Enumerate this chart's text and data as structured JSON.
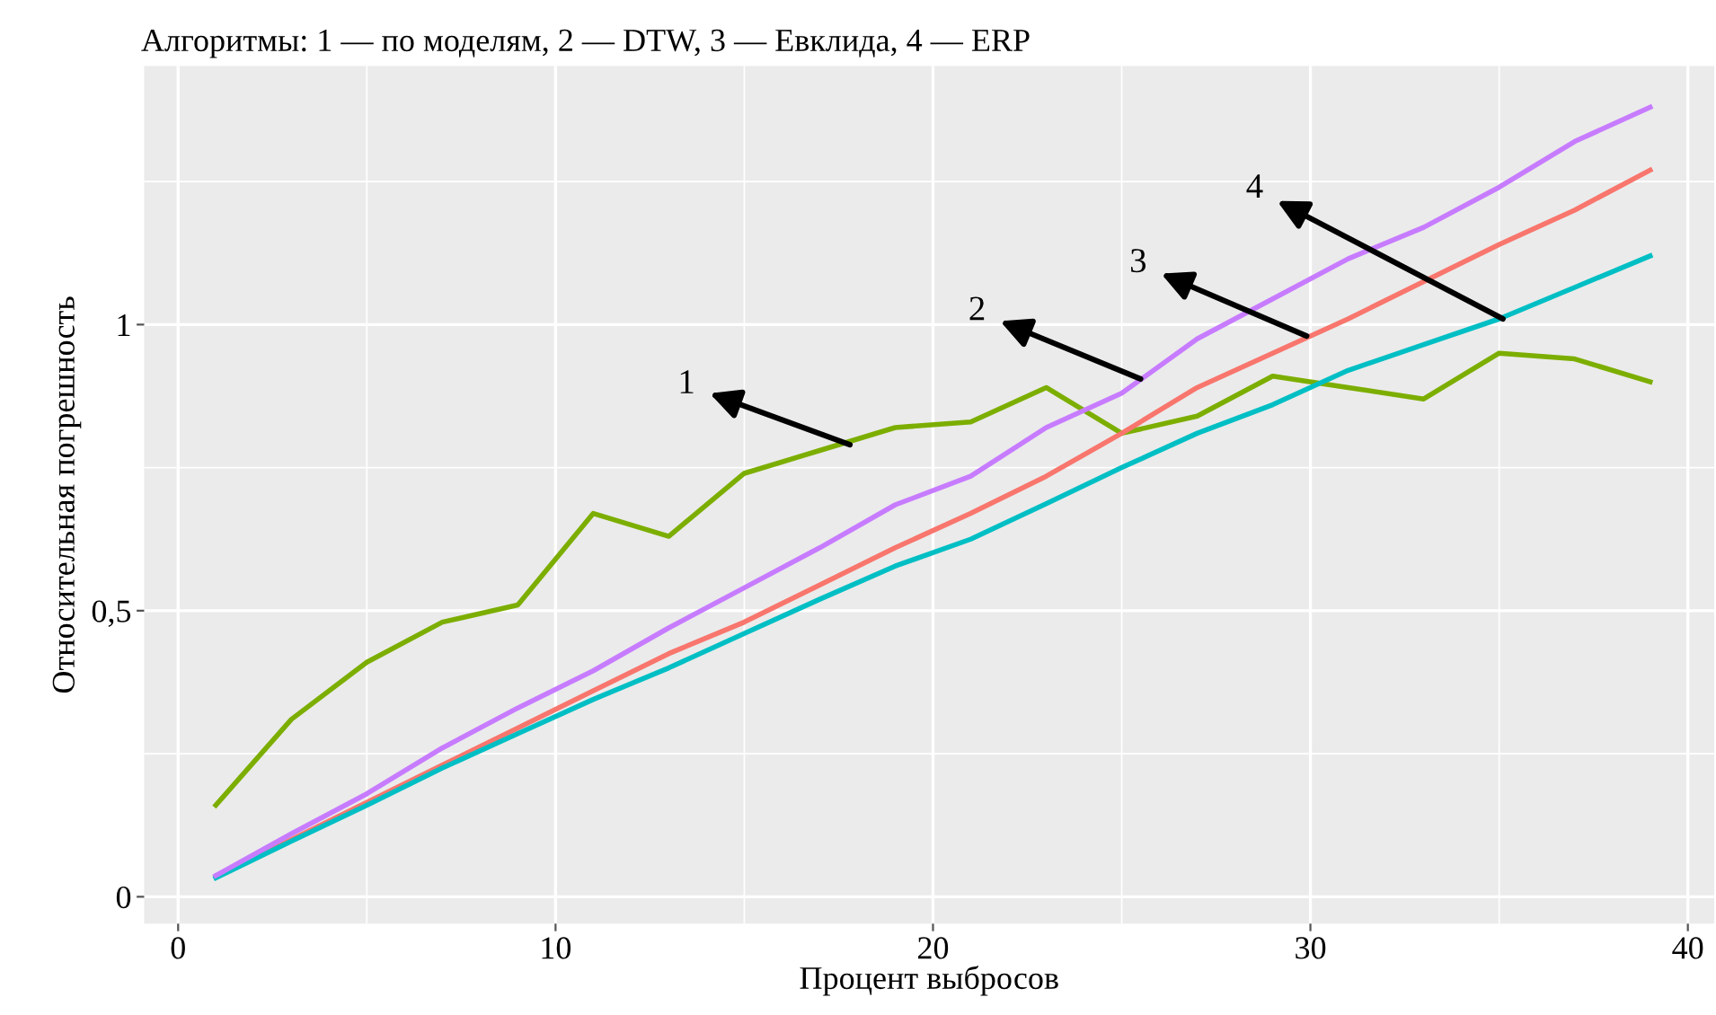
{
  "chart_data": {
    "type": "line",
    "title": "Алгоритмы: 1 — по моделям, 2 — DTW, 3 — Евклида, 4 — ERP",
    "xlabel": "Процент выбросов",
    "ylabel": "Относительная погрешность",
    "x": [
      1,
      3,
      5,
      7,
      9,
      11,
      13,
      15,
      17,
      19,
      21,
      23,
      25,
      27,
      29,
      31,
      33,
      35,
      37,
      39
    ],
    "series": [
      {
        "color": "#7cae00",
        "values": [
          0.16,
          0.31,
          0.41,
          0.48,
          0.51,
          0.67,
          0.63,
          0.74,
          0.78,
          0.82,
          0.83,
          0.89,
          0.81,
          0.84,
          0.91,
          0.89,
          0.87,
          0.95,
          0.94,
          0.9
        ]
      },
      {
        "color": "#f8766d",
        "values": [
          0.035,
          0.1,
          0.165,
          0.23,
          0.295,
          0.36,
          0.425,
          0.48,
          0.545,
          0.61,
          0.67,
          0.735,
          0.81,
          0.89,
          0.95,
          1.01,
          1.075,
          1.14,
          1.2,
          1.27
        ]
      },
      {
        "color": "#00bfc4",
        "values": [
          0.033,
          0.097,
          0.16,
          0.225,
          0.285,
          0.345,
          0.4,
          0.46,
          0.52,
          0.578,
          0.625,
          0.687,
          0.75,
          0.81,
          0.86,
          0.92,
          0.965,
          1.01,
          1.065,
          1.12
        ]
      },
      {
        "color": "#c77cff",
        "values": [
          0.037,
          0.11,
          0.18,
          0.26,
          0.33,
          0.395,
          0.47,
          0.54,
          0.61,
          0.685,
          0.735,
          0.82,
          0.88,
          0.975,
          1.045,
          1.115,
          1.17,
          1.24,
          1.32,
          1.38
        ]
      }
    ],
    "annotations": [
      {
        "text": "1",
        "x": 17.8,
        "y": 0.79
      },
      {
        "text": "2",
        "x": 25.5,
        "y": 0.905
      },
      {
        "text": "3",
        "x": 29.9,
        "y": 0.98
      },
      {
        "text": "4",
        "x": 35.1,
        "y": 1.01
      }
    ],
    "xlim": [
      -0.9,
      40.7
    ],
    "ylim": [
      -0.047,
      1.452
    ],
    "xticks": [
      0,
      {
        "value": 5,
        "label": null
      },
      10,
      {
        "value": 15,
        "label": null
      },
      20,
      {
        "value": 25,
        "label": null
      },
      30,
      {
        "value": 35,
        "label": null
      },
      40
    ],
    "yticks": [
      {
        "value": 0,
        "label": "0"
      },
      {
        "value": 0.25,
        "label": null
      },
      {
        "value": 0.5,
        "label": "0,5"
      },
      {
        "value": 0.75,
        "label": null
      },
      {
        "value": 1,
        "label": "1"
      },
      {
        "value": 1.25,
        "label": null
      }
    ],
    "grid": true,
    "legend": false,
    "marker": "none",
    "line_style": "solid"
  }
}
